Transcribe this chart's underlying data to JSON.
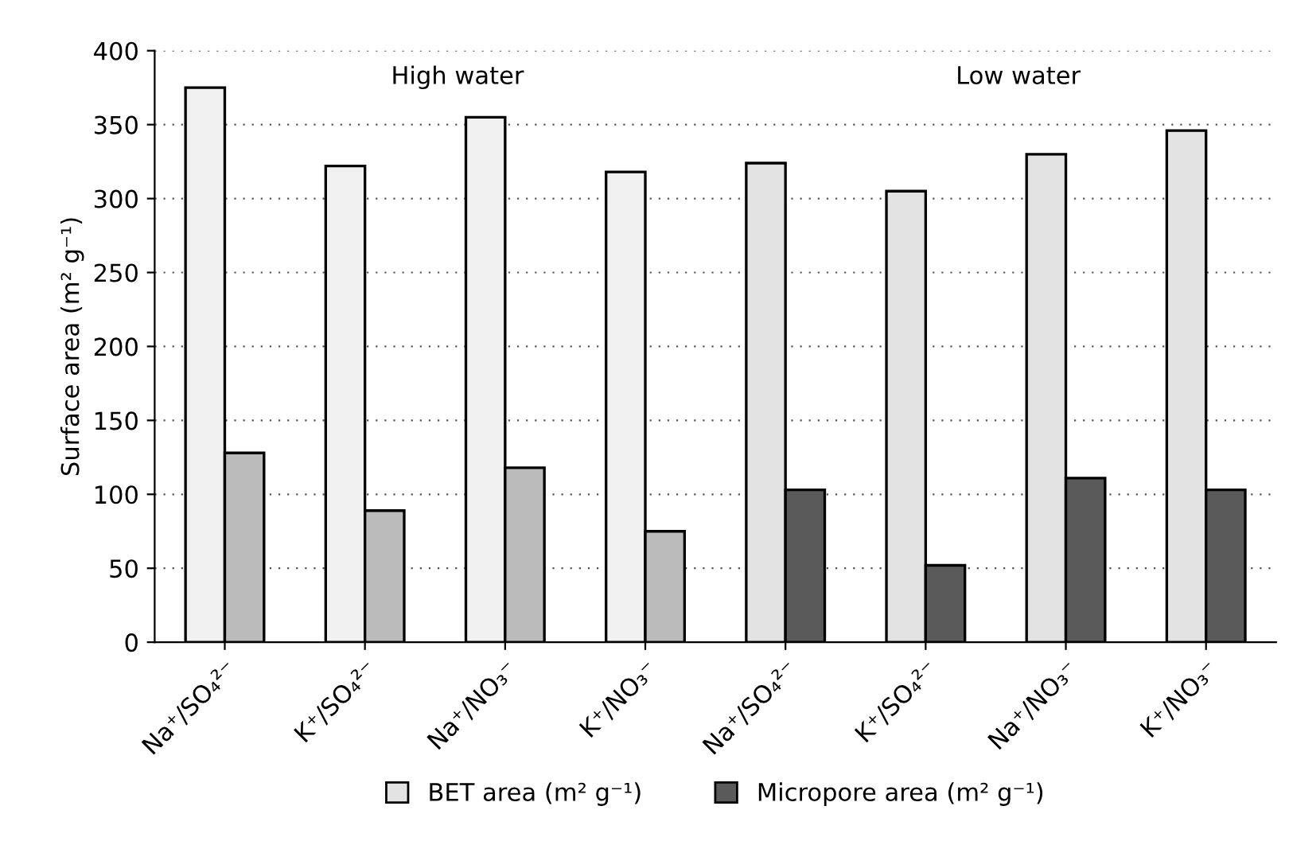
{
  "chart_data": {
    "type": "bar",
    "ylabel": "Surface area (m² g⁻¹)",
    "categories": [
      "Na⁺/SO₄²⁻",
      "K⁺/SO₄²⁻",
      "Na⁺/NO₃⁻",
      "K⁺/NO₃⁻",
      "Na⁺/SO₄²⁻",
      "K⁺/SO₄²⁻",
      "Na⁺/NO₃⁻",
      "K⁺/NO₃⁻"
    ],
    "series": [
      {
        "name": "BET area (m² g⁻¹)",
        "color": "#e3e3e3",
        "colors": [
          "#f0f0f0",
          "#f0f0f0",
          "#f0f0f0",
          "#f0f0f0",
          "#e3e3e3",
          "#e3e3e3",
          "#e3e3e3",
          "#e3e3e3"
        ],
        "values": [
          375,
          322,
          355,
          318,
          324,
          305,
          330,
          346
        ]
      },
      {
        "name": "Micropore area (m² g⁻¹)",
        "color": "#5a5a5a",
        "colors": [
          "#bbbbbb",
          "#bbbbbb",
          "#bbbbbb",
          "#bbbbbb",
          "#5a5a5a",
          "#5a5a5a",
          "#5a5a5a",
          "#5a5a5a"
        ],
        "values": [
          128,
          89,
          118,
          75,
          103,
          52,
          111,
          103
        ]
      }
    ],
    "annotations": [
      "High water",
      "Low water"
    ],
    "ylim": [
      0,
      400
    ],
    "yticks": [
      0,
      50,
      100,
      150,
      200,
      250,
      300,
      350,
      400
    ],
    "grid": "y",
    "legend": "bottom"
  }
}
